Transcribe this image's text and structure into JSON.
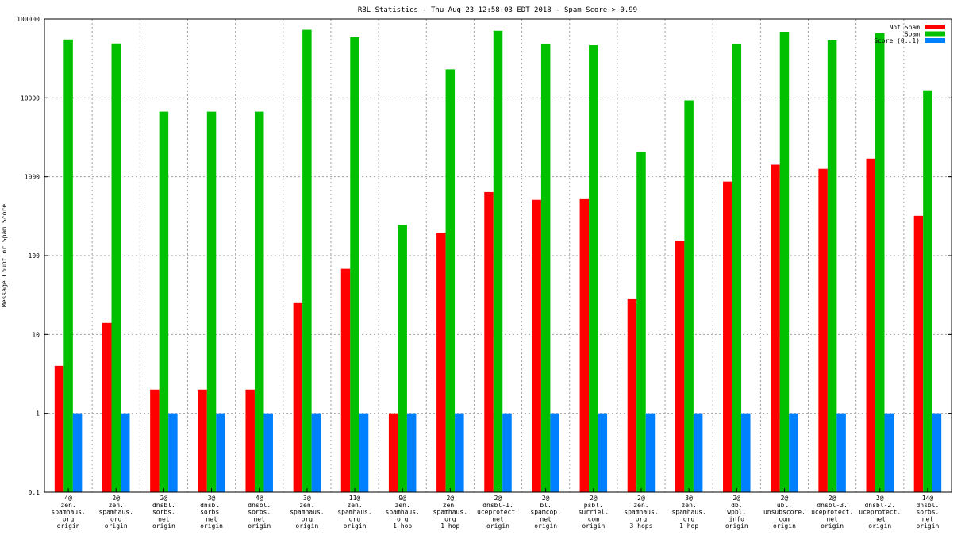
{
  "chart_data": {
    "type": "bar",
    "title": "RBL Statistics - Thu Aug 23 12:58:03 EDT 2018 - Spam Score > 0.99",
    "xlabel": "",
    "ylabel": "Message Count or Spam Score",
    "yscale": "log",
    "ylim": [
      0.1,
      100000
    ],
    "yticks": [
      0.1,
      1,
      10,
      100,
      1000,
      10000,
      100000
    ],
    "ytick_labels": [
      "0.1",
      "1",
      "10",
      "100",
      "1000",
      "10000",
      "100000"
    ],
    "grid": true,
    "legend_position": "top-right",
    "categories": [
      [
        "4@",
        "zen.",
        "spamhaus.",
        "org",
        "origin"
      ],
      [
        "2@",
        "zen.",
        "spamhaus.",
        "org",
        "origin"
      ],
      [
        "2@",
        "dnsbl.",
        "sorbs.",
        "net",
        "origin"
      ],
      [
        "3@",
        "dnsbl.",
        "sorbs.",
        "net",
        "origin"
      ],
      [
        "4@",
        "dnsbl.",
        "sorbs.",
        "net",
        "origin"
      ],
      [
        "3@",
        "zen.",
        "spamhaus.",
        "org",
        "origin"
      ],
      [
        "11@",
        "zen.",
        "spamhaus.",
        "org",
        "origin"
      ],
      [
        "9@",
        "zen.",
        "spamhaus.",
        "org",
        "1 hop"
      ],
      [
        "2@",
        "zen.",
        "spamhaus.",
        "org",
        "1 hop"
      ],
      [
        "2@",
        "dnsbl-1.",
        "uceprotect.",
        "net",
        "origin"
      ],
      [
        "2@",
        "bl.",
        "spamcop.",
        "net",
        "origin"
      ],
      [
        "2@",
        "psbl.",
        "surriel.",
        "com",
        "origin"
      ],
      [
        "2@",
        "zen.",
        "spamhaus.",
        "org",
        "3 hops"
      ],
      [
        "3@",
        "zen.",
        "spamhaus.",
        "org",
        "1 hop"
      ],
      [
        "2@",
        "db.",
        "wpbl.",
        "info",
        "origin"
      ],
      [
        "2@",
        "ubl.",
        "unsubscore.",
        "com",
        "origin"
      ],
      [
        "2@",
        "dnsbl-3.",
        "uceprotect.",
        "net",
        "origin"
      ],
      [
        "2@",
        "dnsbl-2.",
        "uceprotect.",
        "net",
        "origin"
      ],
      [
        "14@",
        "dnsbl.",
        "sorbs.",
        "net",
        "origin"
      ]
    ],
    "series": [
      {
        "name": "Not Spam",
        "color": "#ff0000",
        "values": [
          4,
          14,
          2,
          2,
          2,
          25,
          68,
          1,
          195,
          640,
          510,
          520,
          28,
          155,
          870,
          1420,
          1260,
          1700,
          320
        ]
      },
      {
        "name": "Spam",
        "color": "#00c000",
        "values": [
          55000,
          49000,
          6700,
          6700,
          6700,
          73000,
          59000,
          245,
          23000,
          71000,
          48000,
          46500,
          2050,
          9300,
          48000,
          69000,
          54000,
          66000,
          12500
        ]
      },
      {
        "name": "Score (0..1)",
        "color": "#0080ff",
        "values": [
          1,
          1,
          1,
          1,
          1,
          1,
          1,
          1,
          1,
          1,
          1,
          1,
          1,
          1,
          1,
          1,
          1,
          1,
          1
        ]
      }
    ]
  }
}
